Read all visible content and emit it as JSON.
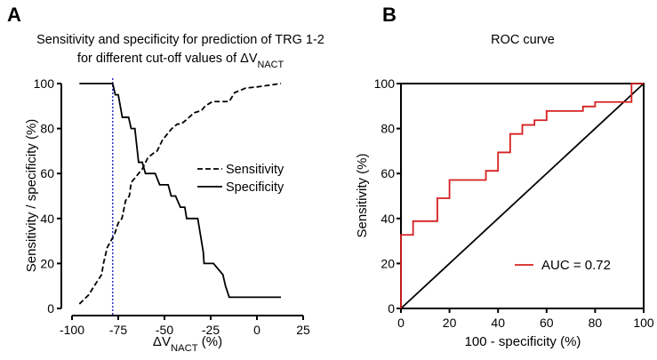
{
  "chart_data": [
    {
      "type": "line",
      "panel_label": "A",
      "title_line1": "Sensitivity and specificity for prediction of TRG 1-2",
      "title_line2": "for different cut-off values of ΔV",
      "title_sub": "NACT",
      "xlabel": "ΔV",
      "xlabel_sub": "NACT",
      "xlabel_suffix": " (%)",
      "ylabel": "Sensitivity / specificity (%)",
      "xlim": [
        -100,
        25
      ],
      "ylim": [
        0,
        100
      ],
      "xticks": [
        "-100",
        "-75",
        "-50",
        "-25",
        "0",
        "25"
      ],
      "yticks": [
        "0",
        "20",
        "40",
        "60",
        "80",
        "100"
      ],
      "cutoff_x": -78,
      "cutoff_color": "#3333cc",
      "legend_position": "right-middle",
      "series": [
        {
          "name": "Sensitivity",
          "style": "dashed",
          "x": [
            -96,
            -91,
            -88,
            -84,
            -83,
            -81,
            -79,
            -77,
            -75,
            -73,
            -71,
            -69,
            -68,
            -66,
            -64,
            -62,
            -59,
            -56,
            -54,
            -51,
            -48,
            -46,
            -43,
            -41,
            -38,
            -34,
            -30,
            -28,
            -24,
            -15,
            -12,
            -6,
            0,
            13
          ],
          "y": [
            2,
            6,
            10,
            15,
            20,
            27,
            30,
            33,
            38,
            40,
            48,
            50,
            56,
            58,
            60,
            62,
            67,
            69,
            70,
            75,
            78,
            80,
            82,
            82,
            84,
            87,
            88,
            90,
            92,
            92,
            96,
            98,
            98.5,
            100
          ]
        },
        {
          "name": "Specificity",
          "style": "solid",
          "x": [
            -96,
            -78,
            -76.6,
            -75,
            -72.8,
            -69.4,
            -68,
            -66,
            -64,
            -62,
            -60.3,
            -55,
            -52.6,
            -48,
            -46.4,
            -44,
            -41.4,
            -39,
            -38,
            -32,
            -29,
            -28.6,
            -23.5,
            -18.4,
            -17,
            -15,
            13
          ],
          "y": [
            100,
            100,
            95,
            95,
            85,
            85,
            80,
            80,
            65,
            65,
            60,
            60,
            55,
            55,
            50,
            50,
            45,
            45,
            40,
            40,
            25,
            20,
            20,
            15,
            10,
            5,
            5
          ]
        }
      ]
    },
    {
      "type": "line",
      "panel_label": "B",
      "title": "ROC curve",
      "xlabel": "100 - specificity (%)",
      "ylabel": "Sensitivity (%)",
      "xlim": [
        0,
        100
      ],
      "ylim": [
        0,
        100
      ],
      "xticks": [
        "0",
        "20",
        "40",
        "60",
        "80",
        "100"
      ],
      "yticks": [
        "0",
        "20",
        "40",
        "60",
        "80",
        "100"
      ],
      "legend_position": "bottom-right",
      "series": [
        {
          "name": "AUC = 0.72",
          "color": "#d62020",
          "step": true,
          "x": [
            0,
            0,
            5,
            5,
            15,
            15,
            20,
            20,
            35,
            35,
            40,
            40,
            45,
            45,
            50,
            50,
            55,
            55,
            60,
            60,
            75,
            75,
            80,
            80,
            95,
            95,
            100
          ],
          "y": [
            0,
            32.7,
            32.7,
            38.8,
            38.8,
            49,
            49,
            57.1,
            57.1,
            61.2,
            61.2,
            69.4,
            69.4,
            77.6,
            77.6,
            81.6,
            81.6,
            83.7,
            83.7,
            87.8,
            87.8,
            89.8,
            89.8,
            91.8,
            91.8,
            100,
            100
          ]
        },
        {
          "name": "reference",
          "color": "#000000",
          "x": [
            0,
            100
          ],
          "y": [
            0,
            100
          ]
        }
      ]
    }
  ]
}
